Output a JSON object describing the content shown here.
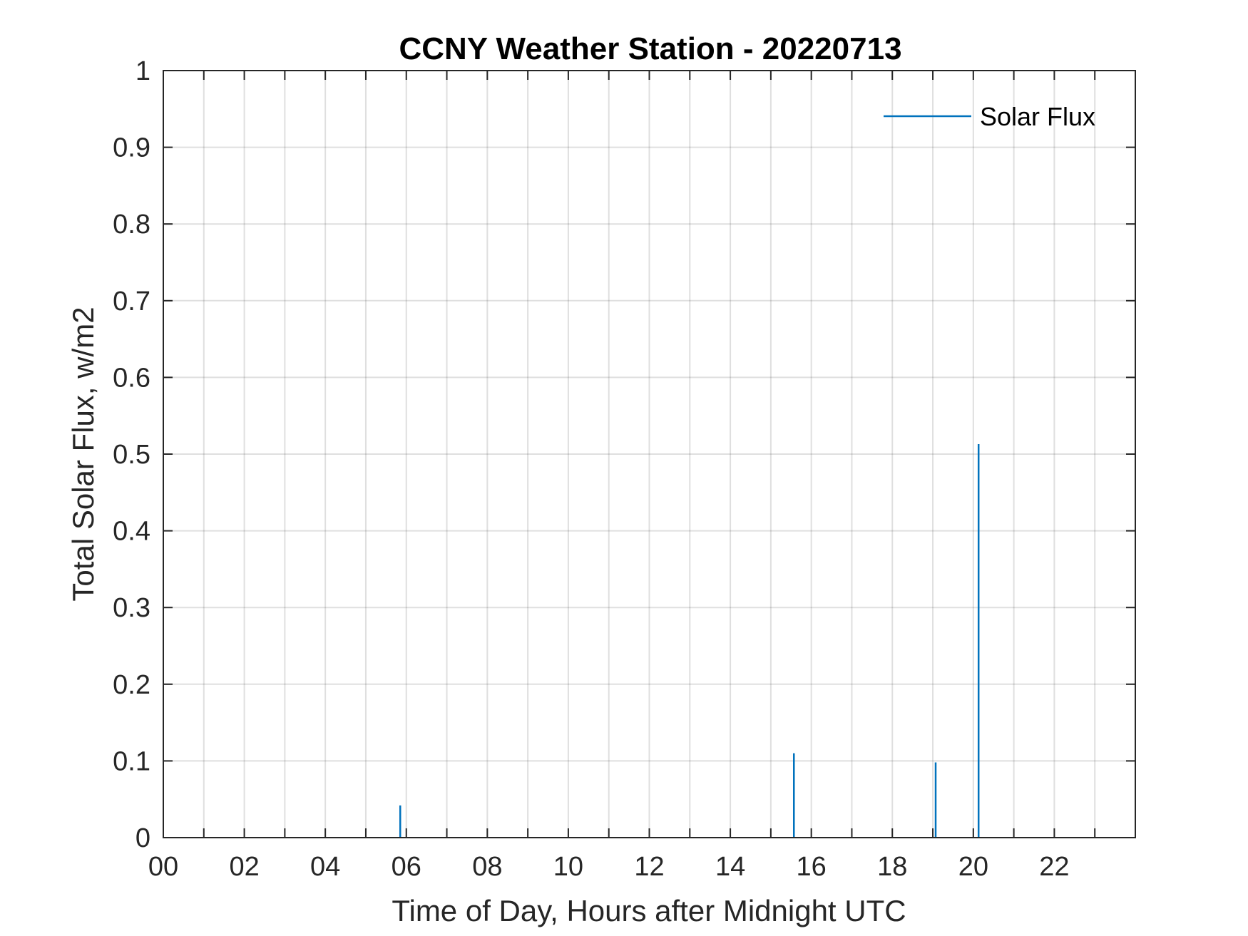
{
  "chart_data": {
    "type": "bar",
    "title": "CCNY Weather Station - 20220713",
    "xlabel": "Time of Day, Hours after Midnight UTC",
    "ylabel": "Total Solar Flux, w/m2",
    "xlim": [
      0,
      24
    ],
    "ylim": [
      0,
      1
    ],
    "xticks": [
      0,
      2,
      4,
      6,
      8,
      10,
      12,
      14,
      16,
      18,
      20,
      22
    ],
    "xtick_labels": [
      "00",
      "02",
      "04",
      "06",
      "08",
      "10",
      "12",
      "14",
      "16",
      "18",
      "20",
      "22"
    ],
    "xgrid_step": 1,
    "yticks": [
      0,
      0.1,
      0.2,
      0.3,
      0.4,
      0.5,
      0.6,
      0.7,
      0.8,
      0.9,
      1
    ],
    "ytick_labels": [
      "0",
      "0.1",
      "0.2",
      "0.3",
      "0.4",
      "0.5",
      "0.6",
      "0.7",
      "0.8",
      "0.9",
      "1"
    ],
    "grid": true,
    "legend_position": "top-right",
    "series": [
      {
        "name": "Solar Flux",
        "color": "#0072BD",
        "points": [
          {
            "x": 5.85,
            "y": 0.042
          },
          {
            "x": 15.57,
            "y": 0.11
          },
          {
            "x": 19.07,
            "y": 0.098
          },
          {
            "x": 20.13,
            "y": 0.513
          }
        ]
      }
    ]
  }
}
